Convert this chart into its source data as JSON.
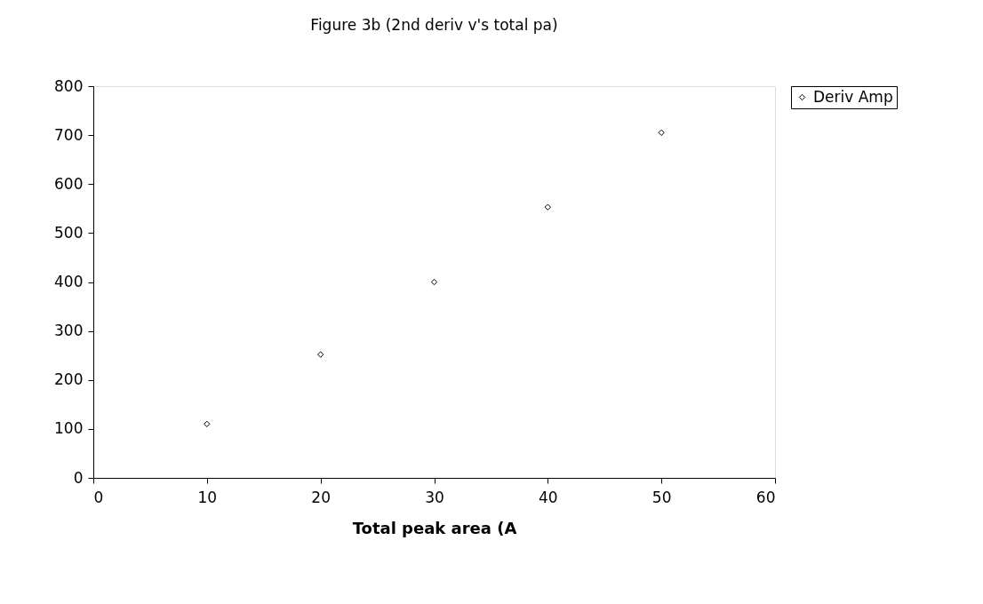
{
  "chart_data": {
    "type": "scatter",
    "title": "Figure 3b (2nd deriv v's total pa)",
    "xlabel": "Total peak area (A",
    "x": [
      10,
      20,
      30,
      40,
      50
    ],
    "series": [
      {
        "name": "Deriv Amp",
        "color": "#000000",
        "values": [
          110,
          252,
          400,
          553,
          705
        ]
      }
    ],
    "xlim": [
      0,
      60
    ],
    "xticks": [
      0,
      10,
      20,
      30,
      40,
      50,
      60
    ],
    "ylim": [
      0,
      800
    ],
    "yticks": [
      0,
      100,
      200,
      300,
      400,
      500,
      600,
      700,
      800
    ],
    "marker": "diamond",
    "grid": false,
    "legend": "right"
  }
}
